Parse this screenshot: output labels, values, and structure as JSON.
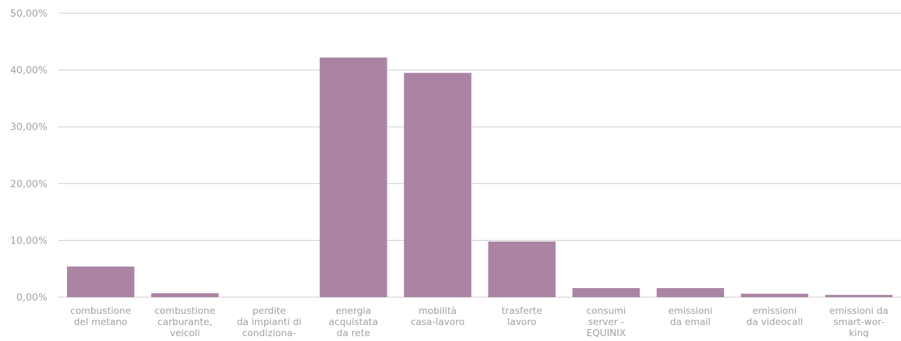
{
  "chart_data": {
    "type": "bar",
    "title": "",
    "xlabel": "",
    "ylabel": "",
    "ylim": [
      0,
      50
    ],
    "grid": true,
    "legend": "none",
    "bar_color": "#ab84a4",
    "grid_color": "#c8c8c8",
    "label_color": "#a0a0a0",
    "yticks": [
      {
        "value": 0,
        "label": "0,00%"
      },
      {
        "value": 10,
        "label": "10,00%"
      },
      {
        "value": 20,
        "label": "20,00%"
      },
      {
        "value": 30,
        "label": "30,00%"
      },
      {
        "value": 40,
        "label": "40,00%"
      },
      {
        "value": 50,
        "label": "50,00%"
      }
    ],
    "categories": [
      [
        "combustione",
        "del metano"
      ],
      [
        "combustione",
        "carburante,",
        "veicoli"
      ],
      [
        "perdite",
        "da impianti di",
        "condiziona-"
      ],
      [
        "energia",
        "acquistata",
        "da rete"
      ],
      [
        "mobilità",
        "casa-lavoro"
      ],
      [
        "trasferte",
        "lavoro"
      ],
      [
        "consumi",
        "server -",
        "EQUINIX"
      ],
      [
        "emissioni",
        "da email"
      ],
      [
        "emissioni",
        "da videocall"
      ],
      [
        "emissioni da",
        "smart-wor-",
        "king"
      ]
    ],
    "values": [
      5.4,
      0.7,
      0.0,
      42.2,
      39.5,
      9.8,
      1.6,
      1.6,
      0.6,
      0.4
    ]
  }
}
